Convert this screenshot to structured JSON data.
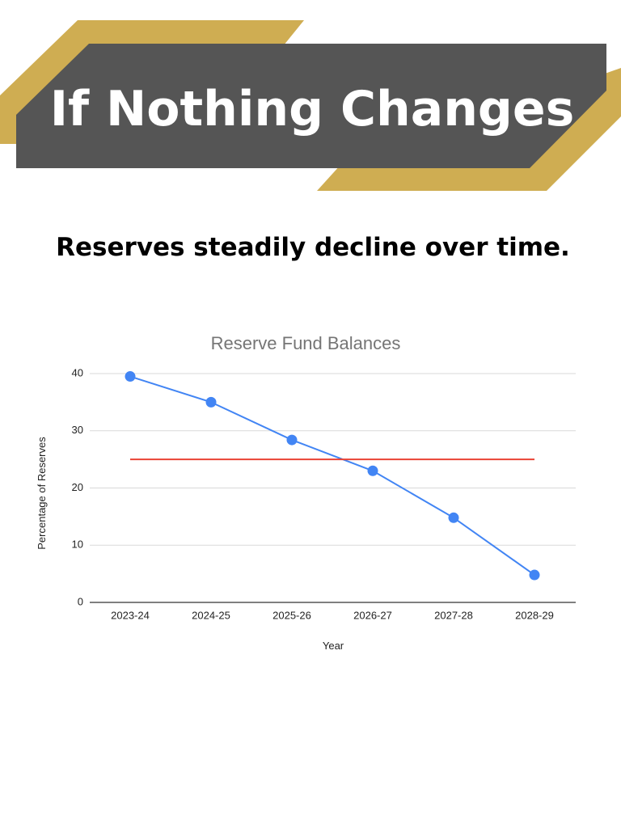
{
  "header": {
    "title": "If Nothing Changes"
  },
  "subtitle": "Reserves steadily decline over time.",
  "chart_data": {
    "type": "line",
    "title": "Reserve Fund Balances",
    "x_label": "Year",
    "y_label": "Percentage of Reserves",
    "categories": [
      "2023-24",
      "2024-25",
      "2025-26",
      "2026-27",
      "2027-28",
      "2028-29"
    ],
    "series": [
      {
        "color": "#4285f4",
        "markers": true,
        "values": [
          39.5,
          35,
          28.4,
          23,
          14.8,
          4.8
        ]
      },
      {
        "color": "#ea4335",
        "markers": false,
        "values": [
          25,
          25,
          25,
          25,
          25,
          25
        ]
      }
    ],
    "ylim": [
      0,
      40
    ],
    "yticks": [
      0,
      10,
      20,
      30,
      40
    ],
    "grid": true
  }
}
